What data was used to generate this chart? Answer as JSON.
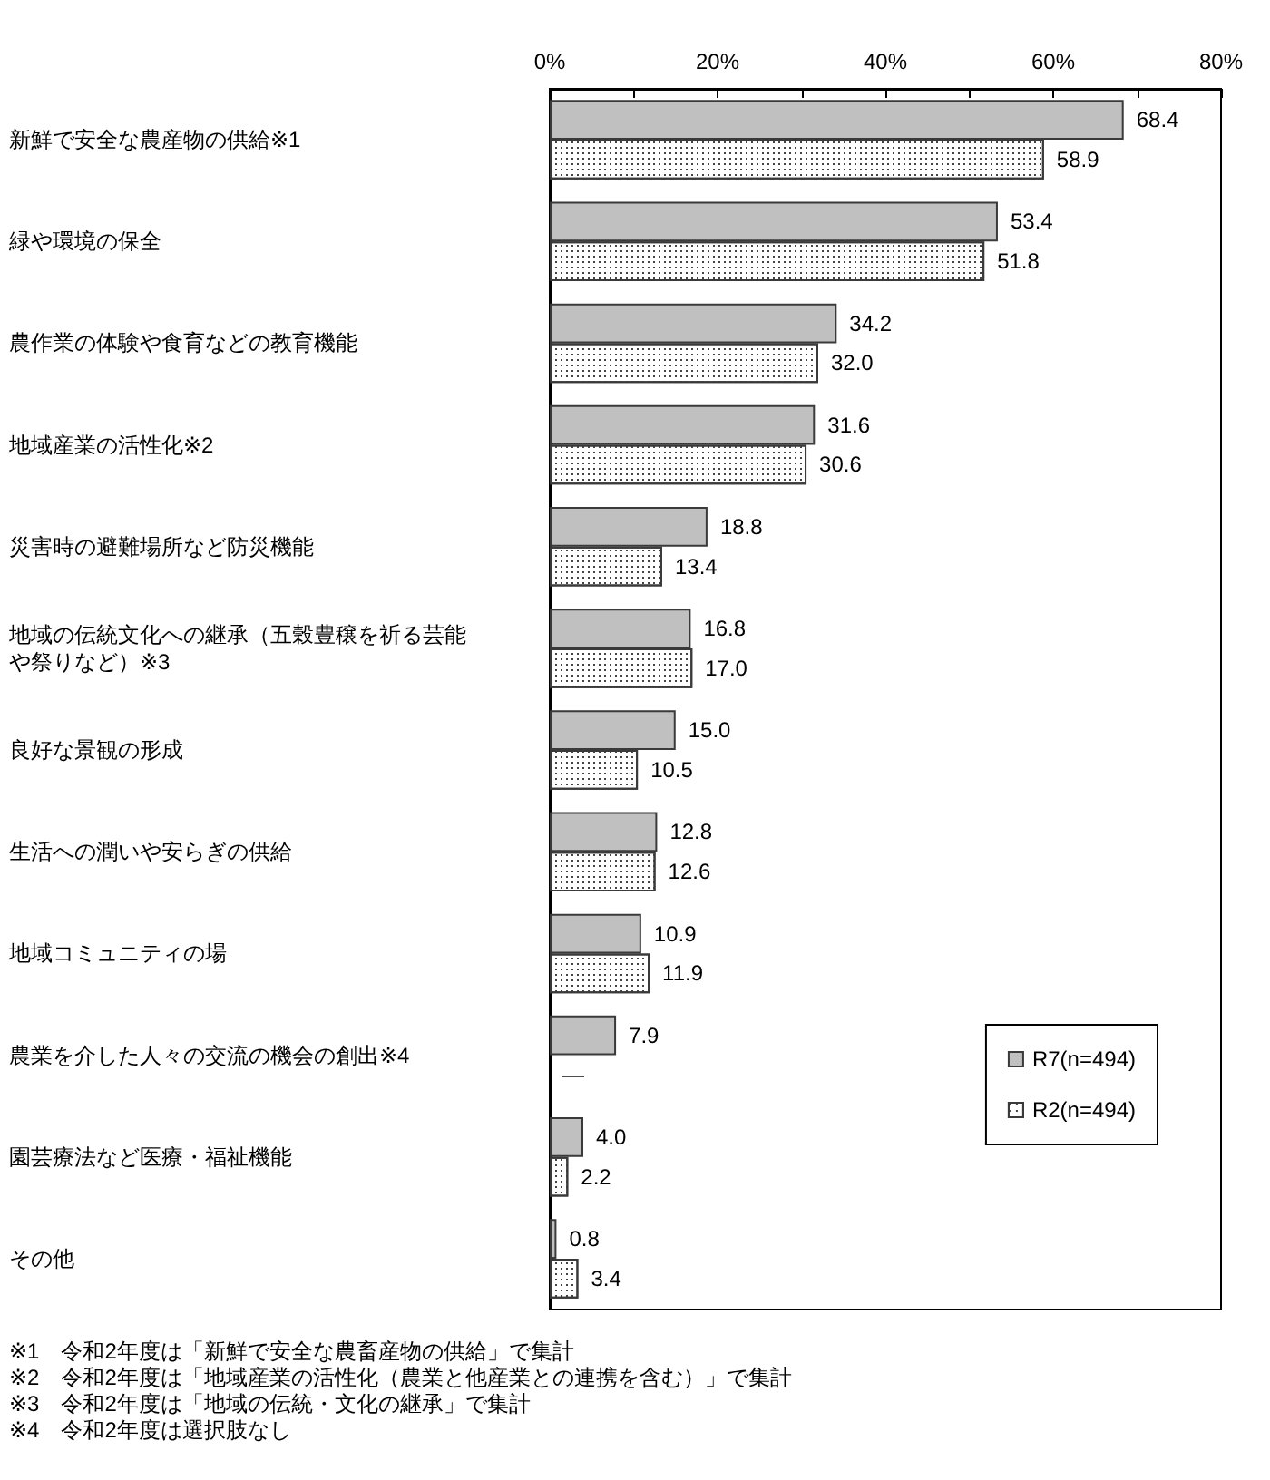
{
  "chart_data": {
    "type": "bar",
    "orientation": "horizontal",
    "categories": [
      "新鮮で安全な農産物の供給※1",
      "緑や環境の保全",
      "農作業の体験や食育などの教育機能",
      "地域産業の活性化※2",
      "災害時の避難場所など防災機能",
      "地域の伝統文化への継承（五穀豊穣を祈る芸能や祭りなど）※3",
      "良好な景観の形成",
      "生活への潤いや安らぎの供給",
      "地域コミュニティの場",
      "農業を介した人々の交流の機会の創出※4",
      "園芸療法など医療・福祉機能",
      "その他"
    ],
    "series": [
      {
        "name": "R7(n=494)",
        "color": "#c0c0c0",
        "values": [
          68.4,
          53.4,
          34.2,
          31.6,
          18.8,
          16.8,
          15.0,
          12.8,
          10.9,
          7.9,
          4.0,
          0.8
        ],
        "value_labels": [
          "68.4",
          "53.4",
          "34.2",
          "31.6",
          "18.8",
          "16.8",
          "15.0",
          "12.8",
          "10.9",
          "7.9",
          "4.0",
          "0.8"
        ]
      },
      {
        "name": "R2(n=494)",
        "color": "#ffffff",
        "values": [
          58.9,
          51.8,
          32.0,
          30.6,
          13.4,
          17.0,
          10.5,
          12.6,
          11.9,
          null,
          2.2,
          3.4
        ],
        "value_labels": [
          "58.9",
          "51.8",
          "32.0",
          "30.6",
          "13.4",
          "17.0",
          "10.5",
          "12.6",
          "11.9",
          "—",
          "2.2",
          "3.4"
        ]
      }
    ],
    "xlim": [
      0,
      80
    ],
    "xticks": [
      {
        "value": 0,
        "label": "0%"
      },
      {
        "value": 10,
        "label": null
      },
      {
        "value": 20,
        "label": "20%"
      },
      {
        "value": 30,
        "label": null
      },
      {
        "value": 40,
        "label": "40%"
      },
      {
        "value": 50,
        "label": null
      },
      {
        "value": 60,
        "label": "60%"
      },
      {
        "value": 70,
        "label": null
      },
      {
        "value": 80,
        "label": "80%"
      }
    ],
    "legend": "bottom right",
    "annotations": [
      "※1　令和2年度は「新鮮で安全な農畜産物の供給」で集計",
      "※2　令和2年度は「地域産業の活性化（農業と他産業との連携を含む）」で集計",
      "※3　令和2年度は「地域の伝統・文化の継承」で集計",
      "※4　令和2年度は選択肢なし"
    ]
  }
}
